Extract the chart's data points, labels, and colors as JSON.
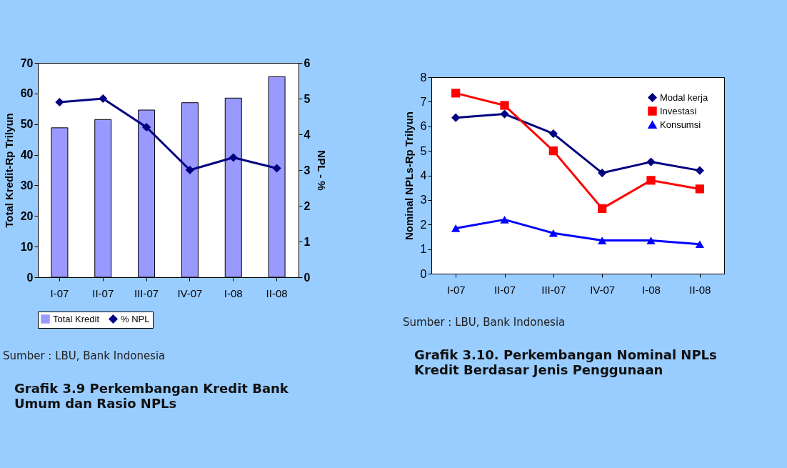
{
  "chart_data": [
    {
      "type": "bar",
      "title": "Grafik 3.9 Perkembangan Kredit Bank Umum dan Rasio NPLs",
      "annotations": [
        "Sumber : LBU, Bank Indonesia"
      ],
      "ylabel": "Total Kredit-Rp Trilyun",
      "y2label": "NPL - %",
      "categories": [
        "I-07",
        "II-07",
        "III-07",
        "IV-07",
        "I-08",
        "II-08"
      ],
      "series": [
        {
          "name": "Total Kredit",
          "type": "bar",
          "color": "#9999ff",
          "values": [
            48.8,
            51.5,
            54.6,
            57.0,
            58.5,
            65.5
          ]
        },
        {
          "name": "% NPL",
          "type": "line",
          "axis": "y2",
          "color": "#000080",
          "marker": "diamond",
          "values": [
            4.9,
            5.0,
            4.2,
            3.0,
            3.35,
            3.05
          ]
        }
      ],
      "ylim": [
        0,
        70
      ],
      "yticks": [
        0,
        10,
        20,
        30,
        40,
        50,
        60,
        70
      ],
      "y2lim": [
        0,
        6
      ],
      "y2ticks": [
        0,
        1,
        2,
        3,
        4,
        5,
        6
      ],
      "legend": "bottom"
    },
    {
      "type": "line",
      "title": "Grafik 3.10. Perkembangan Nominal NPLs Kredit Berdasar Jenis Penggunaan",
      "annotations": [
        "Sumber : LBU, Bank Indonesia"
      ],
      "ylabel": "Nominal NPLs-Rp Trilyun",
      "categories": [
        "I-07",
        "II-07",
        "III-07",
        "IV-07",
        "I-08",
        "II-08"
      ],
      "series": [
        {
          "name": "Modal kerja",
          "color": "#000080",
          "marker": "diamond",
          "values": [
            6.35,
            6.5,
            5.7,
            4.1,
            4.55,
            4.2
          ]
        },
        {
          "name": "Investasi",
          "color": "#ff0000",
          "marker": "square",
          "values": [
            7.35,
            6.85,
            5.0,
            2.65,
            3.8,
            3.45
          ]
        },
        {
          "name": "Konsumsi",
          "color": "#0000ff",
          "marker": "triangle",
          "values": [
            1.85,
            2.2,
            1.65,
            1.35,
            1.35,
            1.2
          ]
        }
      ],
      "ylim": [
        0,
        8
      ],
      "yticks": [
        0,
        1,
        2,
        3,
        4,
        5,
        6,
        7,
        8
      ],
      "legend": "top right"
    }
  ]
}
